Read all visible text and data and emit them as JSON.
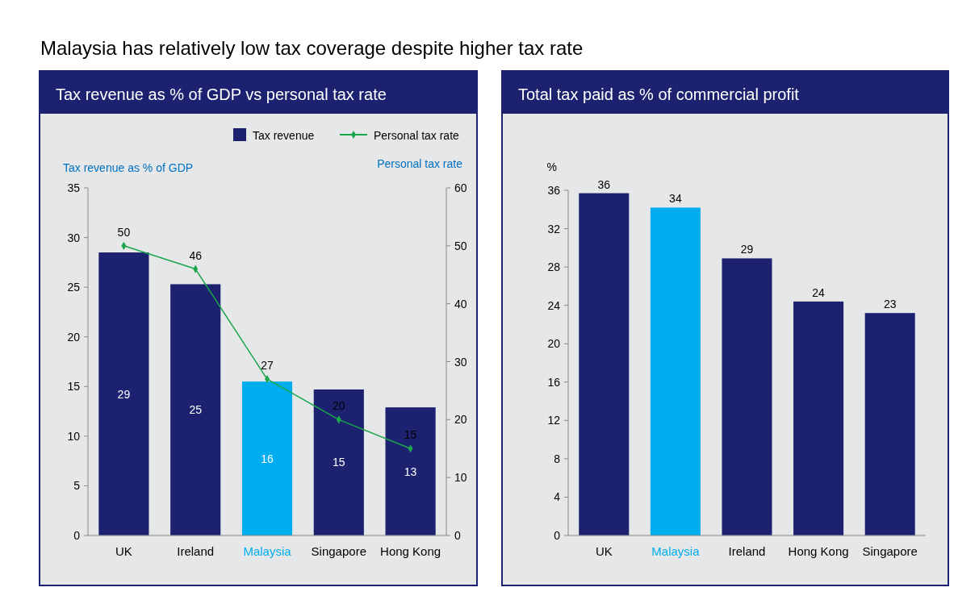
{
  "chart_data": [
    {
      "type": "bar",
      "title": "Tax revenue as % of GDP vs personal tax rate",
      "annotations": [
        "Malaysia has relatively low tax coverage despite higher tax rate"
      ],
      "ylabel": "Tax revenue as % of GDP",
      "y2label": "Personal tax rate",
      "categories": [
        "UK",
        "Ireland",
        "Malaysia",
        "Singapore",
        "Hong Kong"
      ],
      "series": [
        {
          "name": "Tax revenue",
          "color": "#1c2270",
          "colors": [
            "#1c2270",
            "#1c2270",
            "#00aeef",
            "#1c2270",
            "#1c2270"
          ],
          "values": [
            28.5,
            25.3,
            15.5,
            14.7,
            12.9
          ],
          "value_labels": [
            "29",
            "25",
            "16",
            "15",
            "13"
          ]
        },
        {
          "name": "Personal tax rate",
          "type": "line",
          "axis": "y2",
          "color": "#1aa64a",
          "marker": "diamond",
          "values": [
            50,
            46,
            27,
            20,
            15
          ],
          "value_labels": [
            "50",
            "46",
            "27",
            "20",
            "15"
          ]
        }
      ],
      "ylim": [
        0,
        35
      ],
      "yticks": [
        0,
        5,
        10,
        15,
        20,
        25,
        30,
        35
      ],
      "y2lim": [
        0,
        60
      ],
      "y2ticks": [
        0,
        10,
        20,
        30,
        40,
        50,
        60
      ],
      "legend": "top right"
    },
    {
      "type": "bar",
      "title": "Total tax paid as % of commercial profit",
      "ylabel": "%",
      "categories": [
        "UK",
        "Malaysia",
        "Ireland",
        "Hong Kong",
        "Singapore"
      ],
      "series": [
        {
          "color": "#1c2270",
          "colors": [
            "#1c2270",
            "#00aeef",
            "#1c2270",
            "#1c2270",
            "#1c2270"
          ],
          "values": [
            35.7,
            34.2,
            28.9,
            24.4,
            23.2
          ],
          "value_labels": [
            "36",
            "34",
            "29",
            "24",
            "23"
          ]
        }
      ],
      "ylim": [
        0,
        36
      ],
      "yticks": [
        0,
        4,
        8,
        12,
        16,
        20,
        24,
        28,
        32,
        36
      ]
    }
  ]
}
